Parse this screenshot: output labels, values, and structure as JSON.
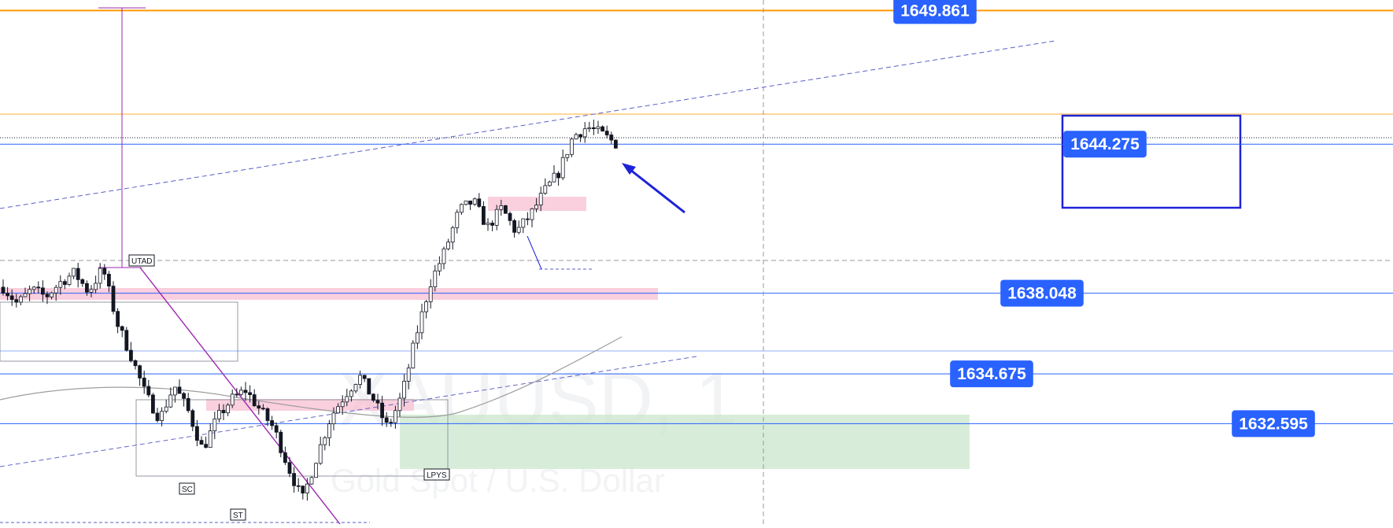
{
  "chart_data": {
    "type": "candlestick",
    "symbol": "XAUUSD",
    "interval": "1",
    "description": "Gold Spot / U.S. Dollar",
    "y_range": [
      1628.4,
      1650.3
    ],
    "horizontal_levels": [
      {
        "value": 1649.861,
        "color": "#ff9800",
        "label": "1649.861"
      },
      {
        "value": 1644.275,
        "color": "#2962ff",
        "label": "1644.275"
      },
      {
        "value": 1638.048,
        "color": "#2962ff",
        "label": "1638.048"
      },
      {
        "value": 1634.675,
        "color": "#2962ff",
        "label": "1634.675"
      },
      {
        "value": 1632.595,
        "color": "#2962ff",
        "label": "1632.595"
      }
    ],
    "event_tags": [
      "UTAD",
      "SC",
      "ST",
      "LPYS"
    ],
    "ohlc_waypoints": [
      1638.3,
      1637.6,
      1638.2,
      1637.9,
      1638.5,
      1638.9,
      1638.1,
      1639.1,
      1636.8,
      1635.4,
      1633.8,
      1632.8,
      1634.2,
      1633.1,
      1631.5,
      1632.8,
      1633.6,
      1634.0,
      1633.2,
      1632.4,
      1630.8,
      1629.4,
      1631.2,
      1632.9,
      1633.8,
      1634.6,
      1633.6,
      1632.4,
      1633.8,
      1636.3,
      1638.5,
      1639.8,
      1641.5,
      1641.9,
      1640.8,
      1641.6,
      1640.6,
      1641.3,
      1642.3,
      1643.1,
      1644.6,
      1645.0,
      1644.7,
      1644.3
    ]
  },
  "colors": {
    "up": "#131722",
    "down": "#131722",
    "wick": "#131722",
    "level_orange": "#ff9800",
    "level_blue": "#2962ff",
    "label_bg": "#2962ff",
    "zone_pink": "#f8bbd0",
    "zone_green": "#c8e6c9",
    "purple": "#9c27b0",
    "arrow": "#1e22d8"
  }
}
